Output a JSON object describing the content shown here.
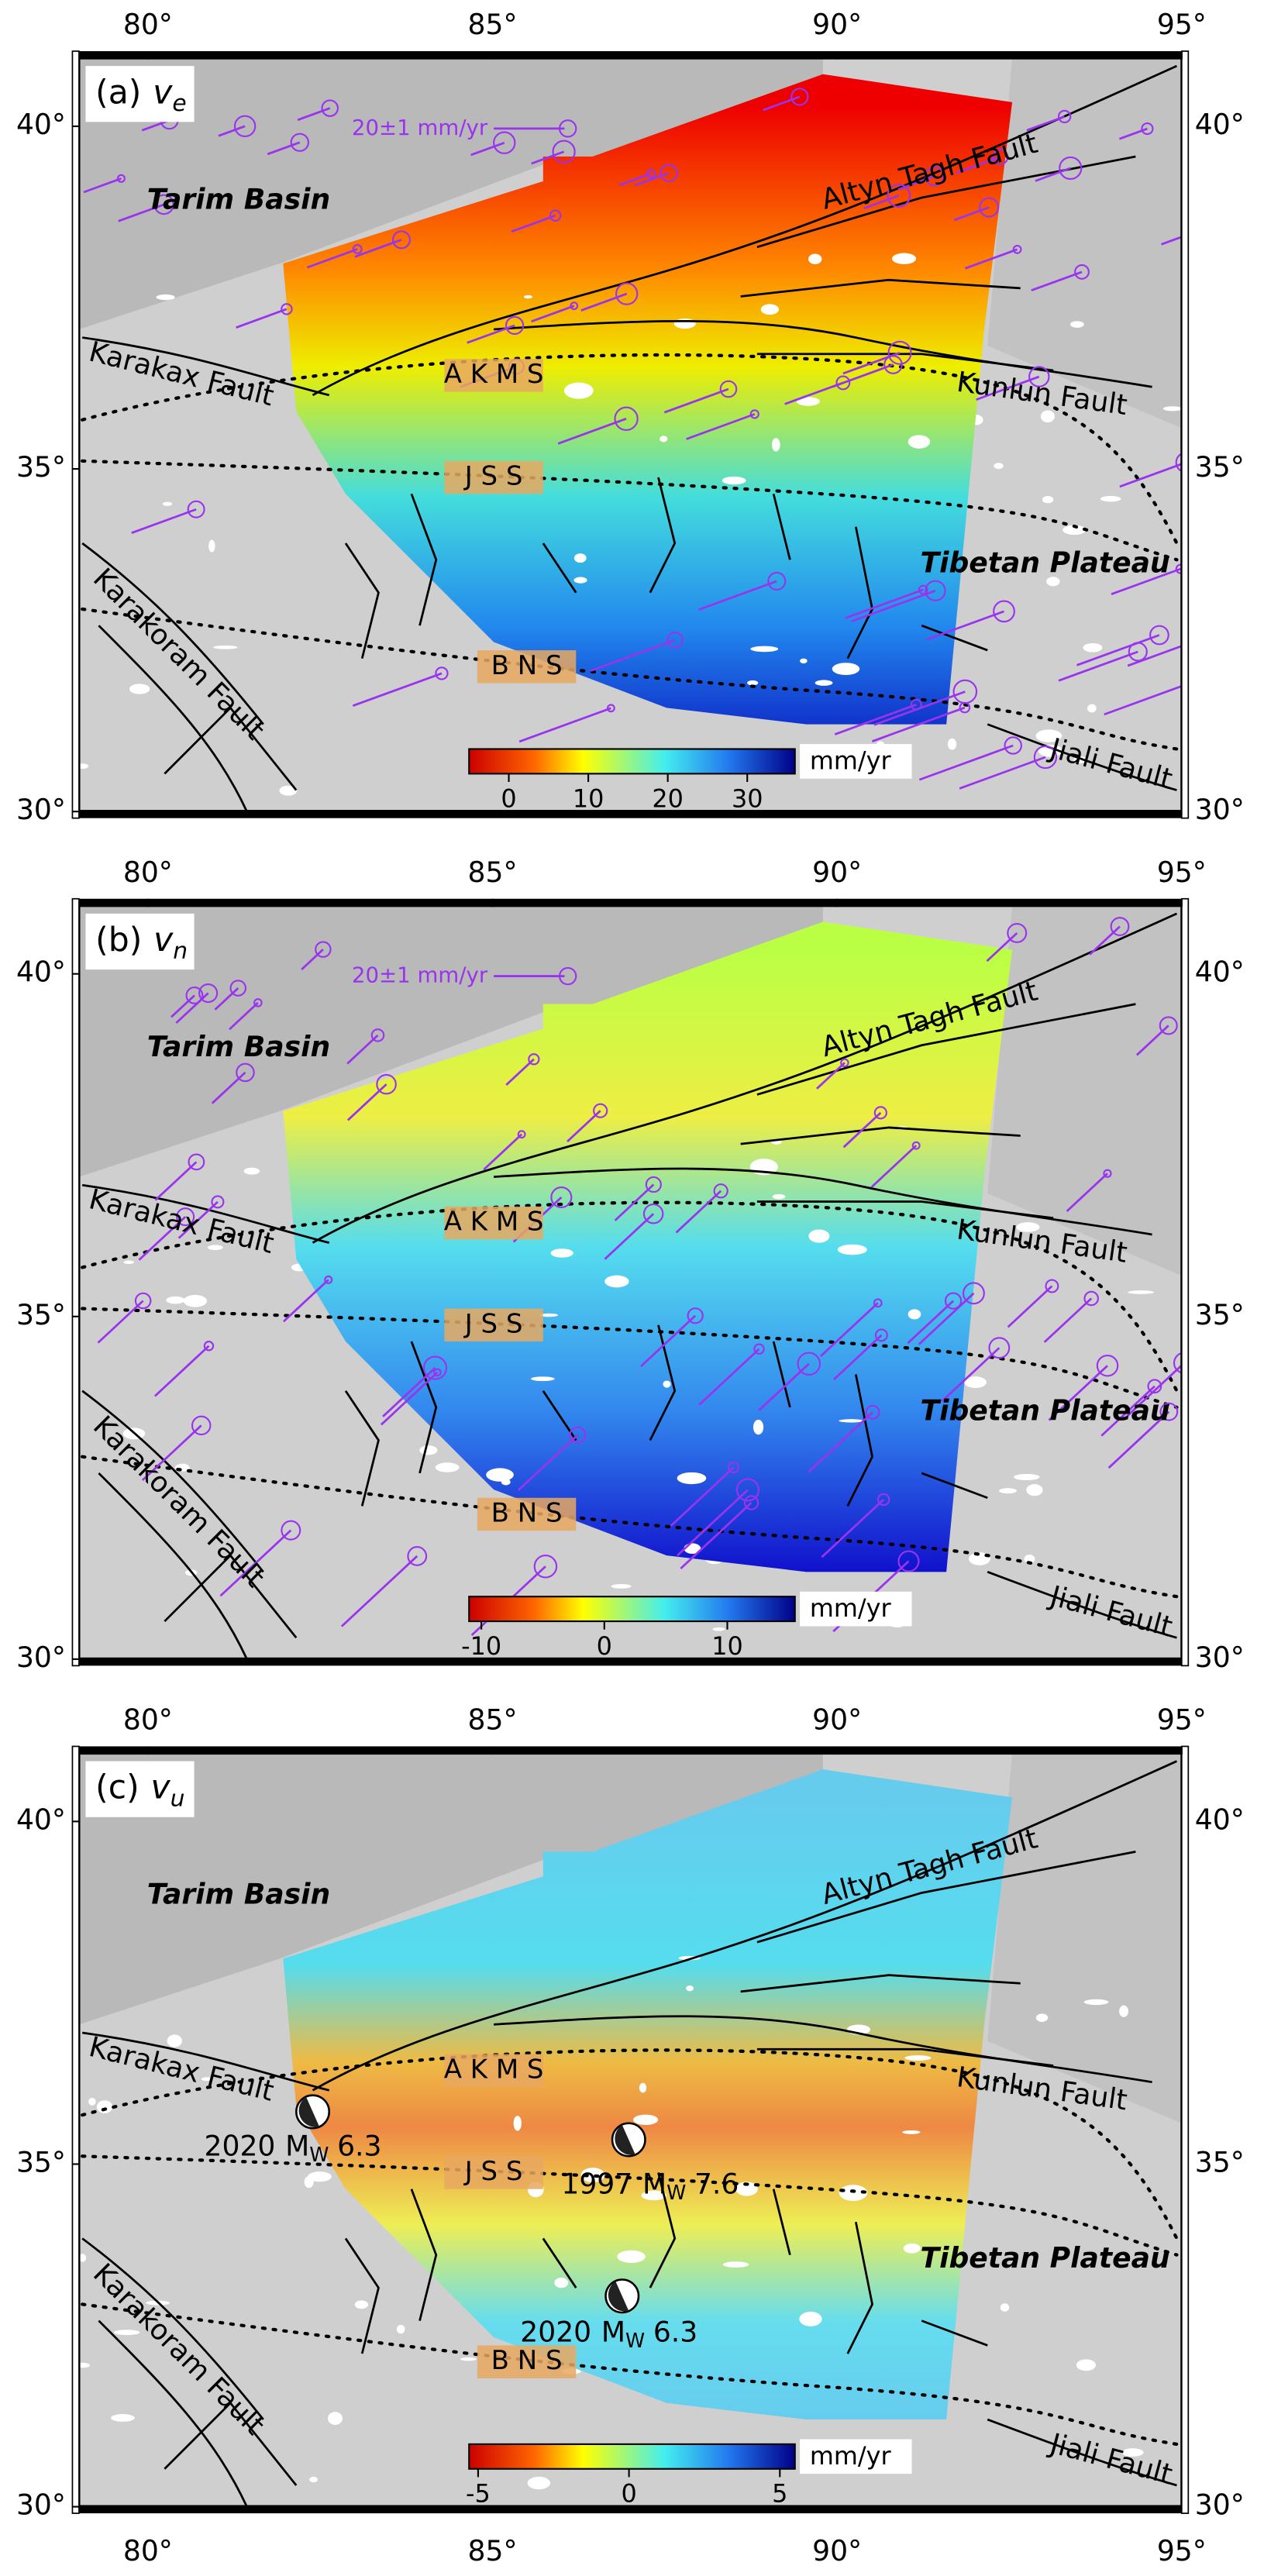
{
  "map": {
    "lon_range": [
      79,
      95
    ],
    "lat_range": [
      30,
      41
    ],
    "lon_ticks": [
      {
        "value": 80,
        "label": "80°"
      },
      {
        "value": 85,
        "label": "85°"
      },
      {
        "value": 90,
        "label": "90°"
      },
      {
        "value": 95,
        "label": "95°"
      }
    ],
    "lat_ticks": [
      {
        "value": 30,
        "label": "30°"
      },
      {
        "value": 35,
        "label": "35°"
      },
      {
        "value": 40,
        "label": "40°"
      }
    ],
    "place_labels": [
      "Tarim Basin",
      "Altyn Tagh Fault",
      "Karakax Fault",
      "Kunlun Fault",
      "Tibetan Plateau",
      "Karakoram Fault",
      "Jiali Fault"
    ],
    "sutures": [
      "A K M S",
      "J S S",
      "B N S"
    ]
  },
  "panels": [
    {
      "label": "(a)",
      "component": "v",
      "subscript": "e",
      "gps_scale_label": "20±1 mm/yr",
      "colorbar": {
        "range": [
          -5,
          36
        ],
        "ticks": [
          0,
          10,
          20,
          30
        ],
        "unit": "mm/yr"
      }
    },
    {
      "label": "(b)",
      "component": "v",
      "subscript": "n",
      "gps_scale_label": "20±1 mm/yr",
      "colorbar": {
        "range": [
          -11,
          15.5
        ],
        "ticks": [
          -10,
          0,
          10
        ],
        "unit": "mm/yr"
      }
    },
    {
      "label": "(c)",
      "component": "v",
      "subscript": "u",
      "colorbar": {
        "range": [
          -5.3,
          5.5
        ],
        "ticks": [
          -5,
          0,
          5
        ],
        "unit": "mm/yr"
      },
      "earthquakes": [
        {
          "year": "2020",
          "mag_type": "M",
          "mag_sub": "W",
          "magnitude": 6.3
        },
        {
          "year": "1997",
          "mag_type": "M",
          "mag_sub": "W",
          "magnitude": 7.6
        },
        {
          "year": "2020",
          "mag_type": "M",
          "mag_sub": "W",
          "magnitude": 6.3
        }
      ]
    }
  ]
}
